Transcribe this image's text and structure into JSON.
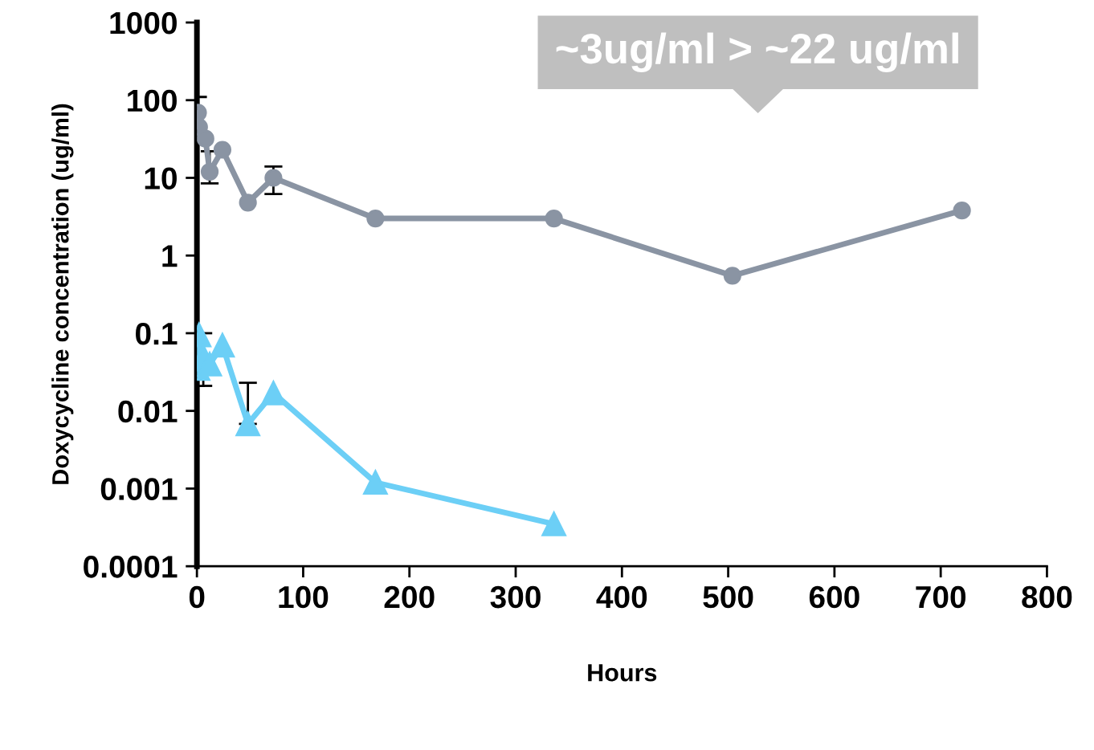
{
  "chart_data": {
    "type": "line",
    "xlabel": "Hours",
    "ylabel": "Doxycycline concentration (ug/ml)",
    "log": "y",
    "grid": false,
    "legend": false,
    "line_style": "solid",
    "xlim": [
      0,
      800
    ],
    "xticks": [
      0,
      100,
      200,
      300,
      400,
      500,
      600,
      700,
      800
    ],
    "ylim": [
      0.0001,
      1000
    ],
    "yticks": [
      0.0001,
      0.001,
      0.01,
      0.1,
      1,
      10,
      100,
      1000
    ],
    "annotations": [
      "~3ug/ml > ~22 ug/ml"
    ],
    "series": [
      {
        "color": "#8a94a3",
        "marker": "circle",
        "x": [
          1,
          2,
          8,
          12,
          24,
          48,
          72,
          168,
          336,
          504,
          720
        ],
        "values": [
          69,
          45,
          32,
          12,
          23,
          4.8,
          10,
          3,
          3,
          0.55,
          3.8
        ],
        "errors": [
          [
            40,
            110
          ],
          null,
          null,
          [
            8.5,
            22
          ],
          null,
          null,
          [
            6.2,
            14
          ],
          null,
          null,
          null,
          null
        ]
      },
      {
        "color": "#6ccff6",
        "marker": "triangle",
        "x": [
          1,
          2,
          6,
          12,
          24,
          48,
          72,
          168,
          336
        ],
        "values": [
          0.035,
          0.095,
          0.05,
          0.04,
          0.07,
          0.0068,
          0.017,
          0.0012,
          0.00035
        ],
        "errors": [
          null,
          null,
          [
            0.021,
            0.1
          ],
          null,
          null,
          [
            0.0068,
            0.023
          ],
          null,
          null,
          null
        ]
      }
    ]
  }
}
